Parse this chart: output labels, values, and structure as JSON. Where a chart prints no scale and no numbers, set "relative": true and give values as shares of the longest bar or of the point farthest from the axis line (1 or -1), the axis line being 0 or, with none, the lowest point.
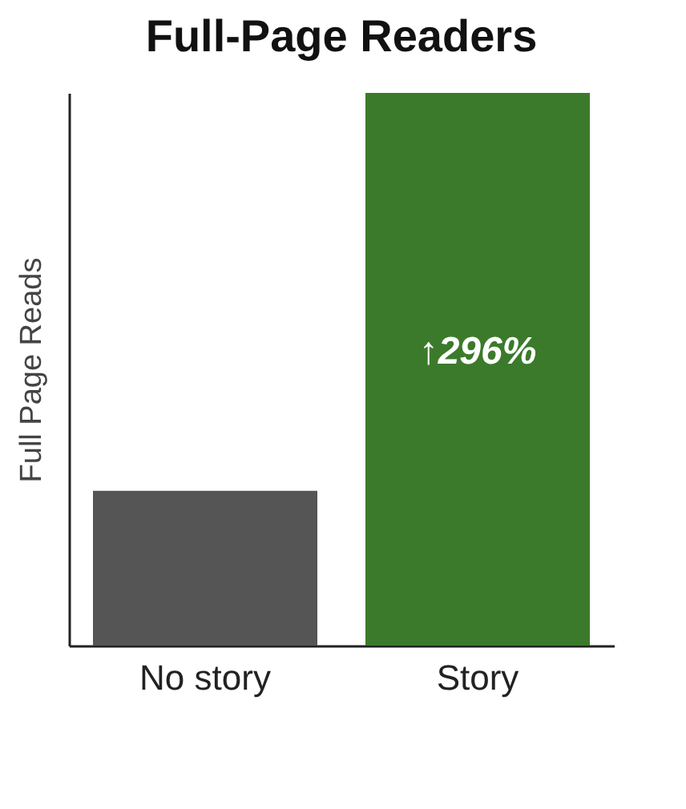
{
  "chart_data": {
    "type": "bar",
    "title": "Full-Page Readers",
    "ylabel": "Full Page Reads",
    "categories": [
      "No story",
      "Story"
    ],
    "values": [
      0.28,
      1
    ],
    "colors": [
      "#555555",
      "#3b7a2b"
    ],
    "relative": true,
    "annotations": [
      "↑296%"
    ],
    "grid": false
  }
}
